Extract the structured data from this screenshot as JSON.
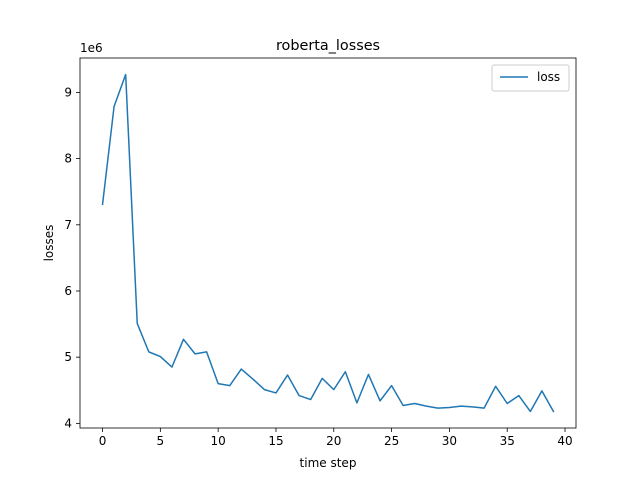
{
  "chart_data": {
    "type": "line",
    "title": "roberta_losses",
    "xlabel": "time step",
    "ylabel": "losses",
    "y_offset_label": "1e6",
    "xlim": [
      -1.95,
      40.95
    ],
    "ylim": [
      3.93,
      9.52
    ],
    "x_ticks": [
      0,
      5,
      10,
      15,
      20,
      25,
      30,
      35,
      40
    ],
    "y_ticks": [
      4,
      5,
      6,
      7,
      8,
      9
    ],
    "legend_position": "top-right",
    "grid": false,
    "series": [
      {
        "name": "loss",
        "color": "#1f77b4",
        "x": [
          0,
          1,
          2,
          3,
          4,
          5,
          6,
          7,
          8,
          9,
          10,
          11,
          12,
          13,
          14,
          15,
          16,
          17,
          18,
          19,
          20,
          21,
          22,
          23,
          24,
          25,
          26,
          27,
          28,
          29,
          30,
          31,
          32,
          33,
          34,
          35,
          36,
          37,
          38,
          39
        ],
        "values": [
          7.31,
          8.79,
          9.27,
          5.51,
          5.08,
          5.01,
          4.85,
          5.27,
          5.05,
          5.08,
          4.6,
          4.57,
          4.82,
          4.67,
          4.51,
          4.46,
          4.73,
          4.42,
          4.36,
          4.68,
          4.51,
          4.78,
          4.31,
          4.74,
          4.34,
          4.57,
          4.27,
          4.3,
          4.26,
          4.23,
          4.24,
          4.26,
          4.25,
          4.23,
          4.56,
          4.3,
          4.42,
          4.18,
          4.49,
          4.18
        ]
      }
    ]
  }
}
